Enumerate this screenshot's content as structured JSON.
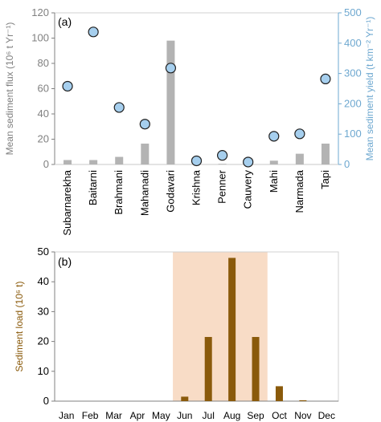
{
  "colors": {
    "bar_a": "#b3b3b3",
    "marker_a": "#a6cfee",
    "marker_edge": "#1f1f1f",
    "axis_gray": "#808080",
    "axis_right": "#6ea8d0",
    "bar_b": "#8a5a0b",
    "ylabel_b": "#8a5a0b",
    "highlight_b": "#f8dcc6"
  },
  "chart_data": [
    {
      "type": "bar",
      "panel_label": "(a)",
      "categories": [
        "Subarnarekha",
        "Baitarni",
        "Brahmani",
        "Mahanadi",
        "Godavari",
        "Krishna",
        "Penner",
        "Cauvery",
        "Mahi",
        "Narmada",
        "Tapi"
      ],
      "series": [
        {
          "values": [
            3.5,
            3.5,
            6,
            16.5,
            98,
            0.5,
            0.5,
            0.3,
            3,
            8.5,
            16.5
          ],
          "axis": "left",
          "kind": "bar"
        },
        {
          "values": [
            258,
            437,
            188,
            133,
            318,
            12,
            30,
            8,
            93,
            101,
            282
          ],
          "axis": "right",
          "kind": "scatter"
        }
      ],
      "ylabel": "Mean sediment flux (10⁶ t Yr⁻¹)",
      "ylabel_right": "Mean sediment yield (t km⁻² Yr⁻¹)",
      "ylim": [
        0,
        120
      ],
      "ylim_right": [
        0,
        500
      ],
      "yticks": [
        0,
        20,
        40,
        60,
        80,
        100,
        120
      ],
      "yticks_right": [
        0,
        100,
        200,
        300,
        400,
        500
      ],
      "grid": false,
      "legend": "none"
    },
    {
      "type": "bar",
      "panel_label": "(b)",
      "categories": [
        "Jan",
        "Feb",
        "Mar",
        "Apr",
        "May",
        "Jun",
        "Jul",
        "Aug",
        "Sep",
        "Oct",
        "Nov",
        "Dec"
      ],
      "values": [
        0,
        0,
        0,
        0,
        0,
        1.5,
        21.5,
        48,
        21.5,
        5,
        0.3,
        0
      ],
      "ylabel": "Sediment load (10⁶ t)",
      "ylim": [
        0,
        50
      ],
      "yticks": [
        0,
        10,
        20,
        30,
        40,
        50
      ],
      "highlight_categories": [
        "Jun",
        "Sep"
      ],
      "grid": false,
      "legend": "none"
    }
  ]
}
